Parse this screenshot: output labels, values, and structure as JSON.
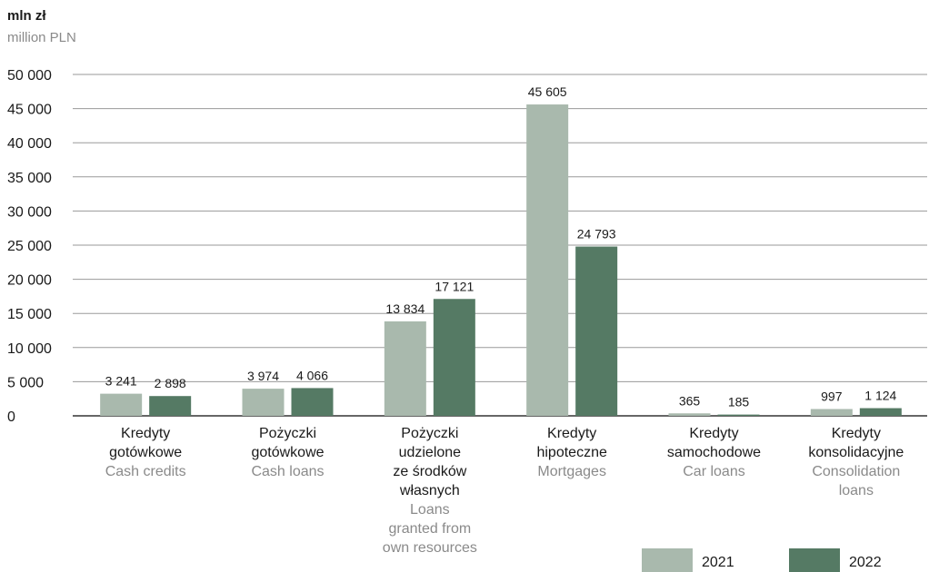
{
  "unit": {
    "pl": "mln zł",
    "en": "million PLN"
  },
  "colors": {
    "series_2021": "#a9b9ad",
    "series_2022": "#557a64"
  },
  "chart_data": {
    "type": "bar",
    "ylim": [
      0,
      50000
    ],
    "yticks": [
      0,
      5000,
      10000,
      15000,
      20000,
      25000,
      30000,
      35000,
      40000,
      45000,
      50000
    ],
    "ytick_labels": [
      "0",
      "5 000",
      "10 000",
      "15 000",
      "20 000",
      "25 000",
      "30 000",
      "35 000",
      "40 000",
      "45 000",
      "50 000"
    ],
    "grid": true,
    "legend_position": "bottom-right",
    "categories": [
      {
        "pl": [
          "Kredyty",
          "gotówkowe"
        ],
        "en": [
          "Cash credits"
        ]
      },
      {
        "pl": [
          "Pożyczki",
          "gotówkowe"
        ],
        "en": [
          "Cash loans"
        ]
      },
      {
        "pl": [
          "Pożyczki",
          "udzielone",
          "ze środków",
          "własnych"
        ],
        "en": [
          "Loans",
          "granted from",
          "own resources"
        ]
      },
      {
        "pl": [
          "Kredyty",
          "hipoteczne"
        ],
        "en": [
          "Mortgages"
        ]
      },
      {
        "pl": [
          "Kredyty",
          "samochodowe"
        ],
        "en": [
          "Car loans"
        ]
      },
      {
        "pl": [
          "Kredyty",
          "konsolidacyjne"
        ],
        "en": [
          "Consolidation",
          "loans"
        ]
      }
    ],
    "series": [
      {
        "name": "2021",
        "values": [
          3241,
          3974,
          13834,
          45605,
          365,
          997
        ],
        "labels": [
          "3 241",
          "3 974",
          "13 834",
          "45 605",
          "365",
          "997"
        ]
      },
      {
        "name": "2022",
        "values": [
          2898,
          4066,
          17121,
          24793,
          185,
          1124
        ],
        "labels": [
          "2 898",
          "4 066",
          "17 121",
          "24 793",
          "185",
          "1 124"
        ]
      }
    ]
  }
}
